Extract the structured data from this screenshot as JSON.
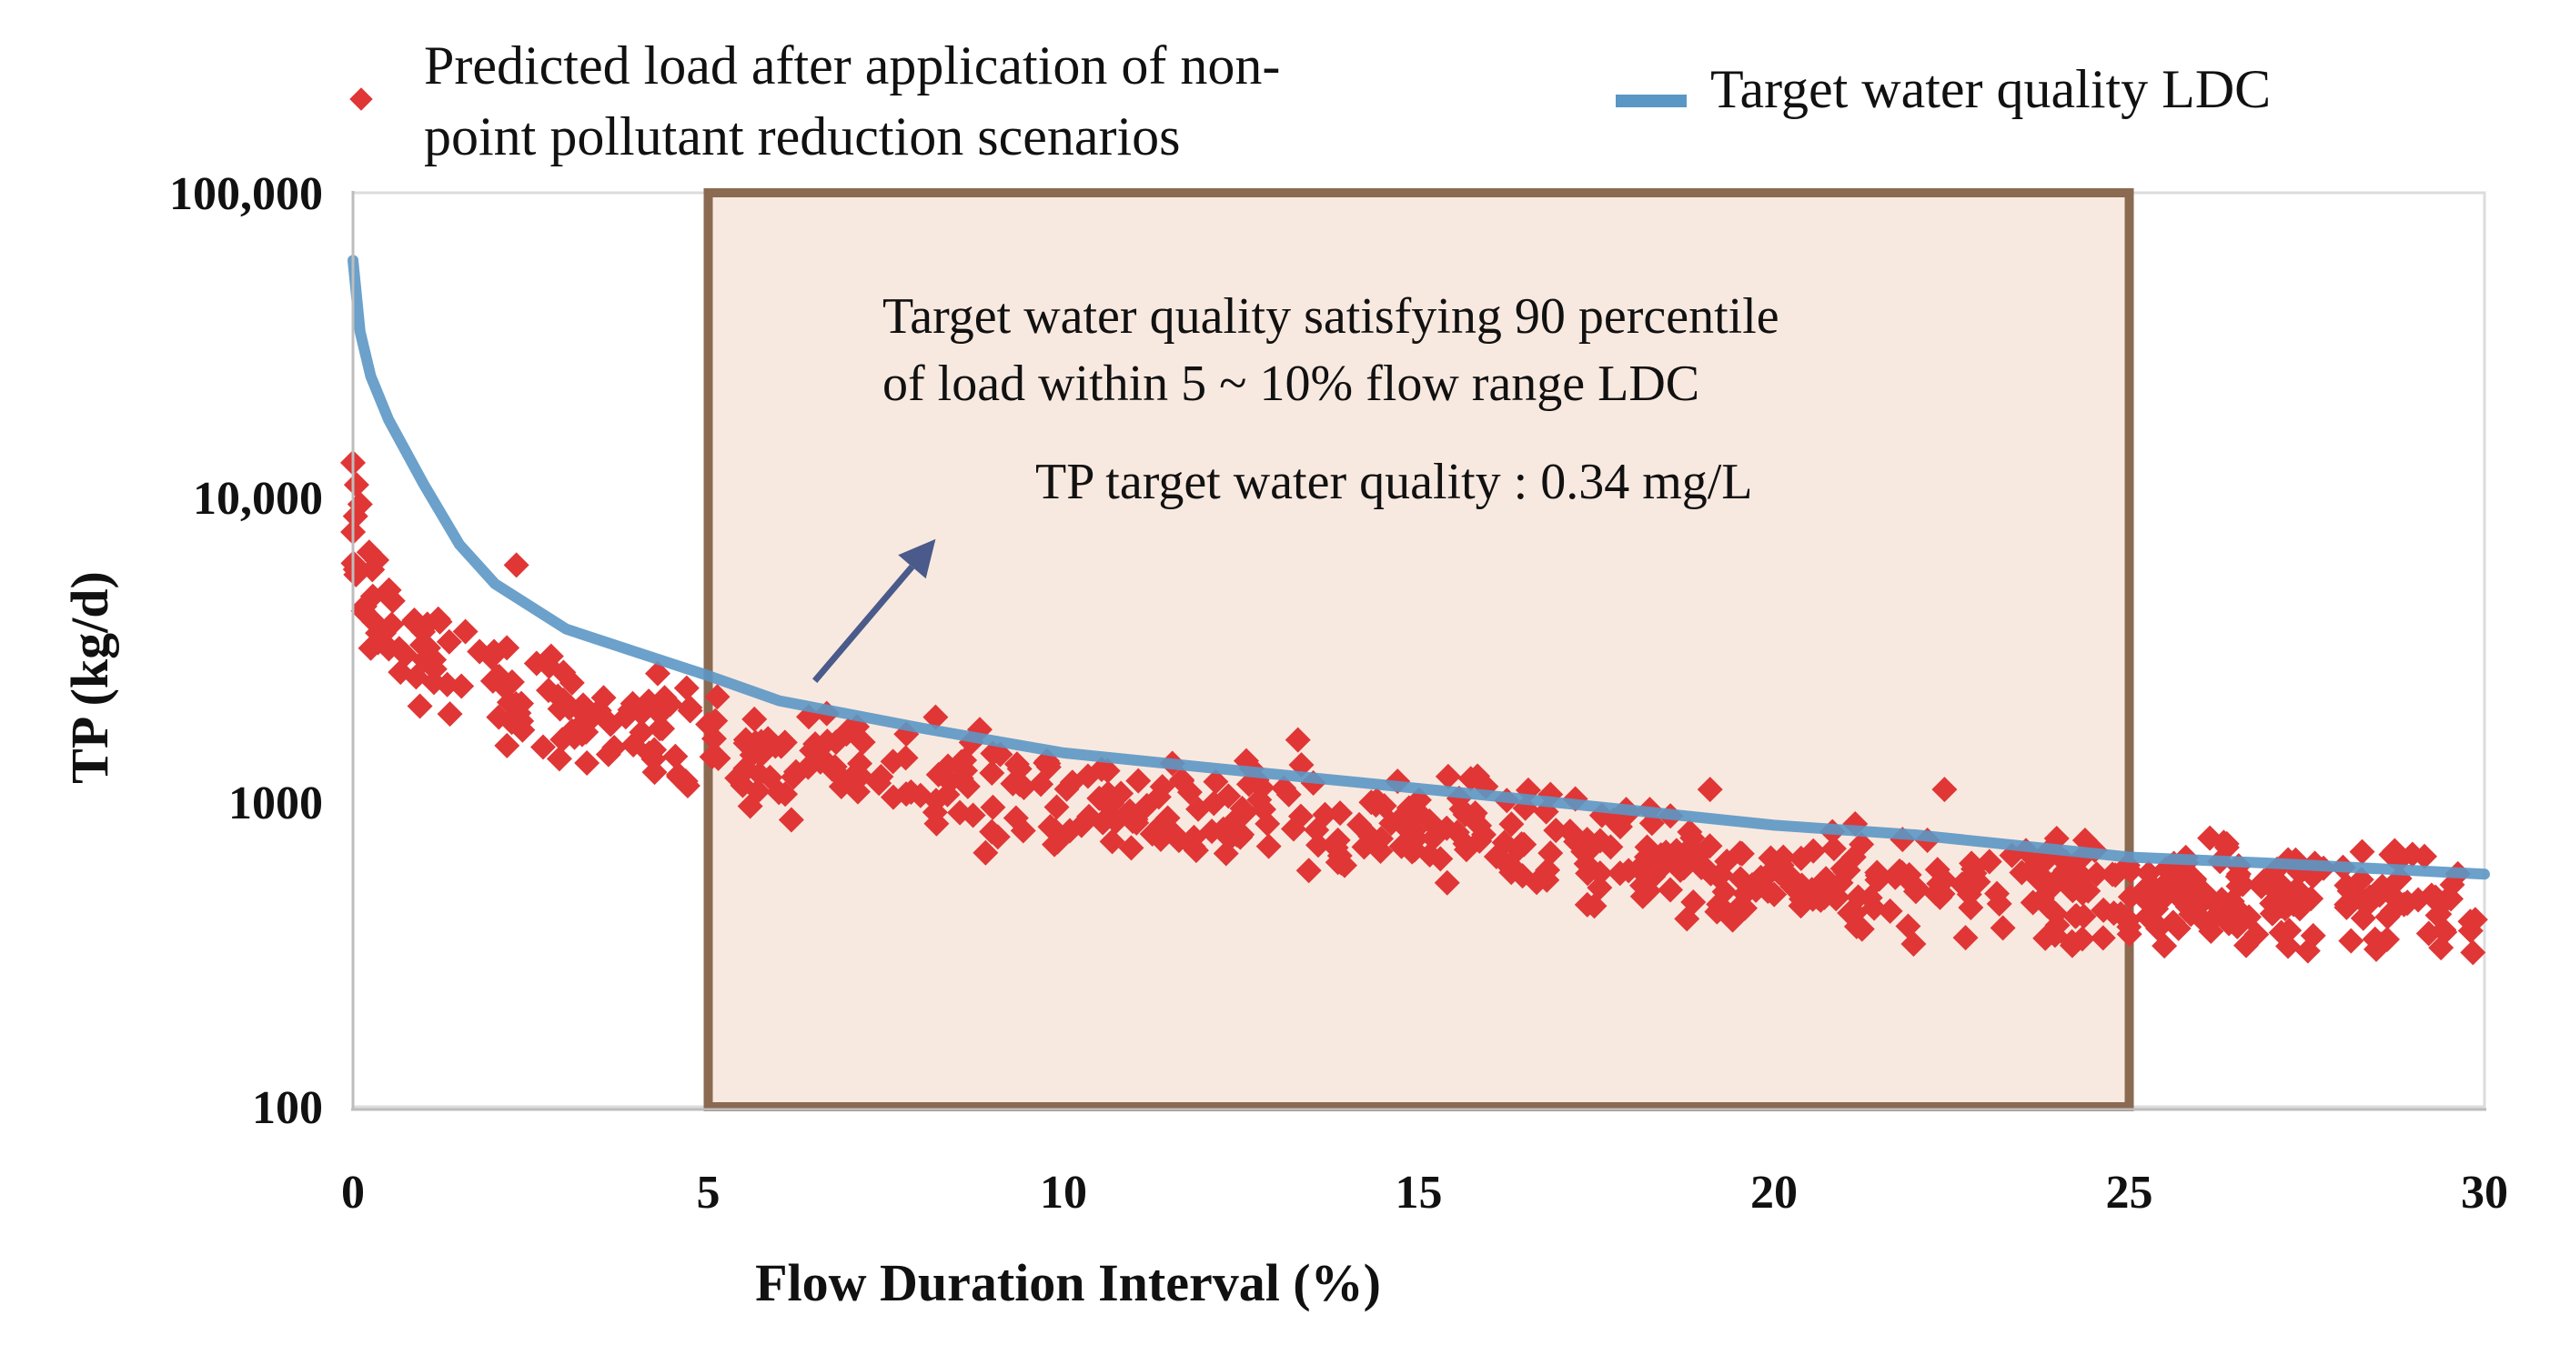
{
  "chart_data": {
    "type": "scatter",
    "title": "",
    "xlabel": "Flow Duration Interval (%)",
    "ylabel": "TP (kg/d)",
    "xlim": [
      0,
      30
    ],
    "ylim": [
      100,
      100000
    ],
    "yscale": "log",
    "x_ticks": [
      "0",
      "5",
      "10",
      "15",
      "20",
      "25",
      "30"
    ],
    "y_ticks": [
      "100",
      "1000",
      "10,000",
      "100,000"
    ],
    "grid": "vertical",
    "legend_position": "top",
    "legend": [
      {
        "label_lines": [
          "Predicted load after application of non-",
          "point pollutant reduction scenarios"
        ],
        "marker": "diamond"
      },
      {
        "label": "Target water quality LDC",
        "marker": "line"
      }
    ],
    "highlight_range": {
      "x": [
        5,
        25
      ]
    },
    "annotations": {
      "lines": [
        "Target water quality satisfying 90 percentile",
        "of load within 5 ~ 10% flow range LDC"
      ],
      "target": "TP target water quality : 0.34  mg/L",
      "arrow_from": [
        6.5,
        2500
      ],
      "arrow_to": [
        8.2,
        7300
      ]
    },
    "series": [
      {
        "name": "Target water quality LDC",
        "type": "line",
        "color": "#5b97c4",
        "x": [
          0,
          0.1,
          0.25,
          0.5,
          1,
          1.5,
          2,
          3,
          4,
          5,
          6,
          8,
          10,
          12,
          14,
          16,
          18,
          20,
          22,
          25,
          27,
          30
        ],
        "y": [
          60000,
          35000,
          25000,
          18000,
          11000,
          7000,
          5200,
          3700,
          3100,
          2600,
          2150,
          1750,
          1450,
          1300,
          1170,
          1050,
          940,
          840,
          780,
          660,
          630,
          580
        ]
      },
      {
        "name": "Predicted load after application of non-point pollutant reduction scenarios",
        "type": "scatter",
        "color": "#e03636",
        "trend_x": [
          0,
          0.1,
          0.25,
          0.5,
          1,
          2,
          3,
          4,
          5,
          7,
          10,
          12,
          15,
          18,
          20,
          22,
          25,
          27,
          30
        ],
        "trend_y": [
          7000,
          5000,
          4400,
          3700,
          2900,
          2350,
          2100,
          1800,
          1500,
          1250,
          1000,
          950,
          850,
          650,
          550,
          530,
          500,
          490,
          480
        ],
        "spread_factor": 1.6,
        "point_count": 700,
        "outliers": [
          [
            0,
            13000
          ],
          [
            0.05,
            11000
          ],
          [
            0.1,
            9500
          ],
          [
            2.3,
            6000
          ],
          [
            8.2,
            1900
          ],
          [
            13.3,
            1600
          ],
          [
            22.4,
            1100
          ],
          [
            19.1,
            1100
          ]
        ]
      }
    ]
  }
}
